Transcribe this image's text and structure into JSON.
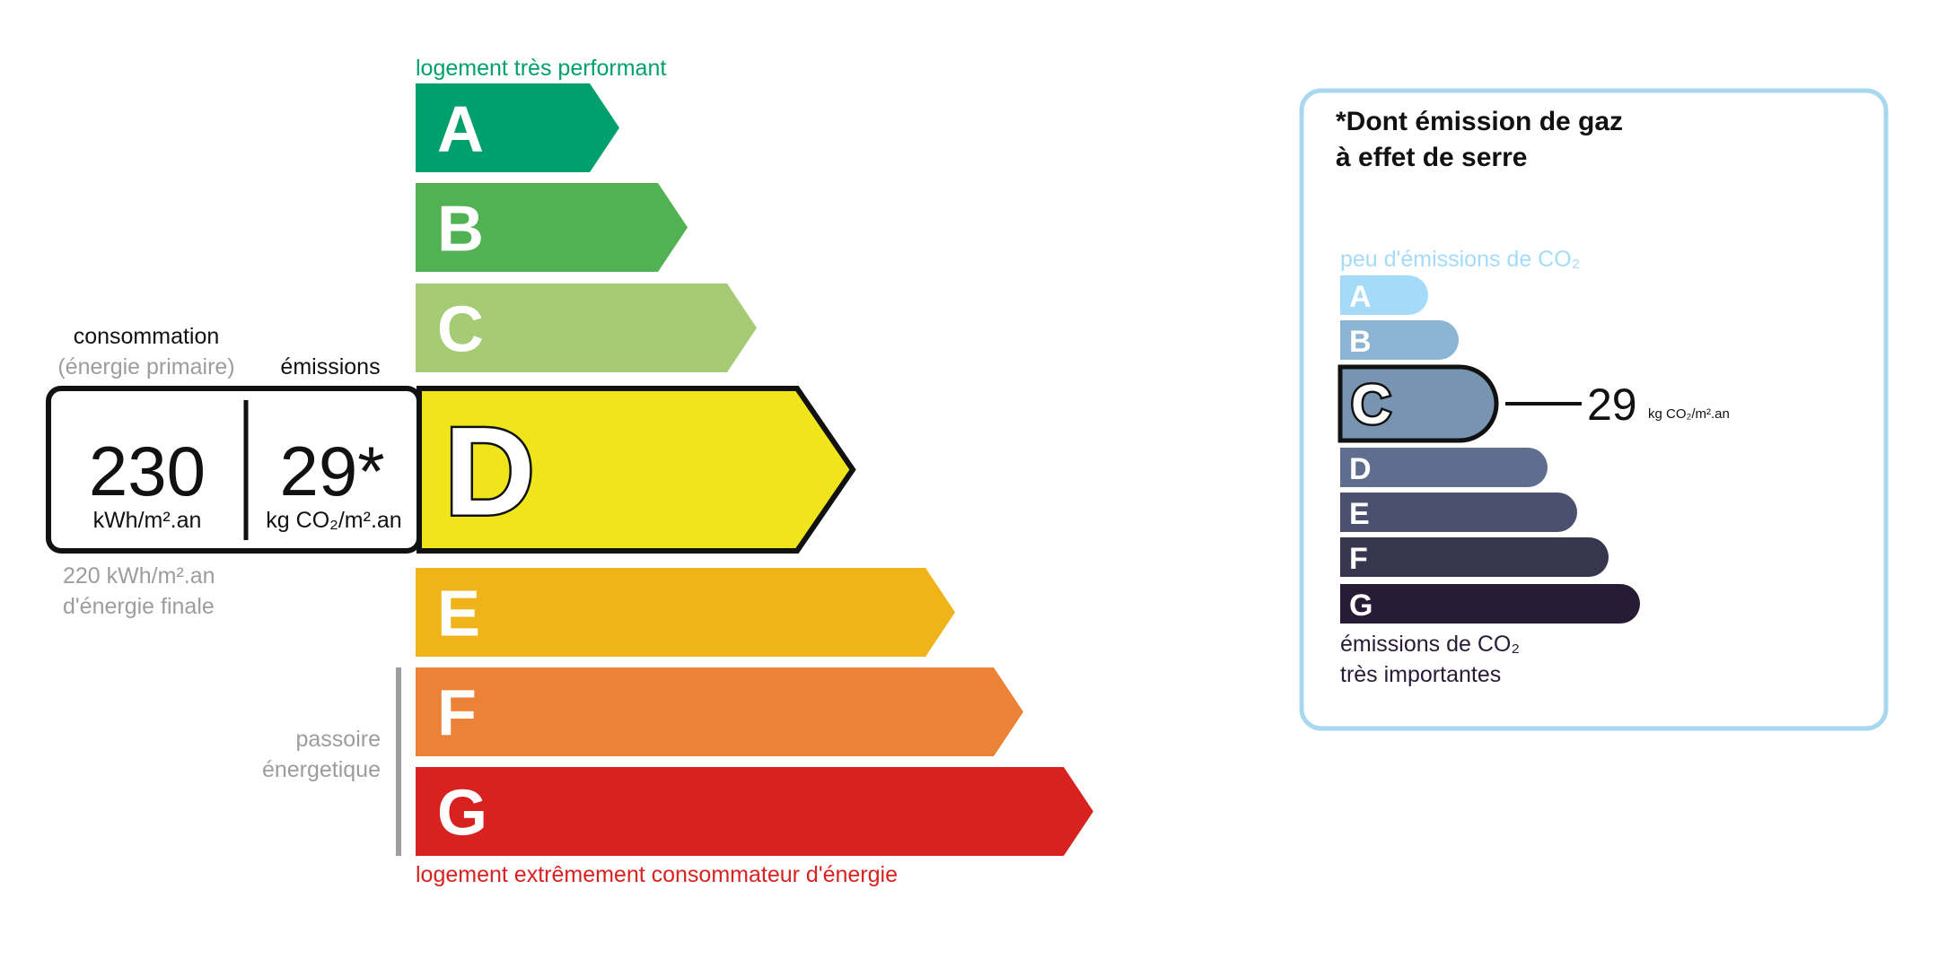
{
  "energy": {
    "top_label": "logement très performant",
    "bottom_label": "logement extrêmement consommateur d'énergie",
    "passoire_label": [
      "passoire",
      "énergetique"
    ],
    "classes": [
      {
        "letter": "A",
        "color": "#00a06d"
      },
      {
        "letter": "B",
        "color": "#52b153"
      },
      {
        "letter": "C",
        "color": "#a5cc74"
      },
      {
        "letter": "D",
        "color": "#f0e51b"
      },
      {
        "letter": "E",
        "color": "#f0b41a"
      },
      {
        "letter": "F",
        "color": "#eb8235"
      },
      {
        "letter": "G",
        "color": "#d7221f"
      }
    ],
    "selected_class": "D",
    "consumption_heading": "consommation",
    "consumption_subheading": "(énergie primaire)",
    "emissions_heading": "émissions",
    "consumption_value": "230",
    "consumption_unit": "kWh/m².an",
    "emissions_value": "29*",
    "emissions_unit": "kg CO₂/m².an",
    "final_energy": [
      "220 kWh/m².an",
      "d'énergie finale"
    ],
    "top_label_color": "#00a06d",
    "bottom_label_color": "#d7221f"
  },
  "ghg": {
    "title": [
      "*Dont émission de gaz",
      "à effet de serre"
    ],
    "top_label": "peu d'émissions de CO₂",
    "bottom_label": [
      "émissions de CO₂",
      "très importantes"
    ],
    "classes": [
      {
        "letter": "A",
        "color": "#a4dbf8"
      },
      {
        "letter": "B",
        "color": "#8cb4d3"
      },
      {
        "letter": "C",
        "color": "#7794b1"
      },
      {
        "letter": "D",
        "color": "#5f6e8f"
      },
      {
        "letter": "E",
        "color": "#4b5070"
      },
      {
        "letter": "F",
        "color": "#38354f"
      },
      {
        "letter": "G",
        "color": "#281b35"
      }
    ],
    "selected_class": "C",
    "value": "29",
    "unit": "kg CO₂/m².an",
    "border_color": "#a8d8f0"
  }
}
